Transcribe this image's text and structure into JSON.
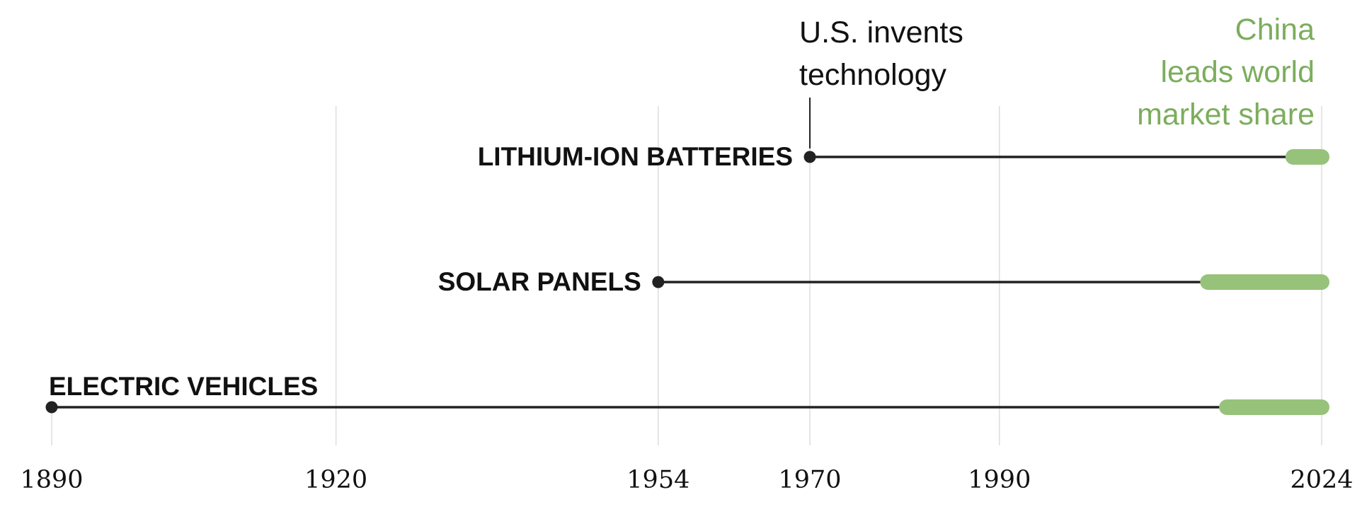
{
  "chart_data": {
    "type": "timeline",
    "x_ticks": [
      1890,
      1920,
      1954,
      1970,
      1990,
      2024
    ],
    "xlim": [
      1890,
      2024
    ],
    "series": [
      {
        "name": "LITHIUM-ION BATTERIES",
        "us_invents": 1970,
        "china_leads_start": 2021,
        "end": 2024
      },
      {
        "name": "SOLAR PANELS",
        "us_invents": 1954,
        "china_leads_start": 2012,
        "end": 2024
      },
      {
        "name": "ELECTRIC VEHICLES",
        "us_invents": 1890,
        "china_leads_start": 2014,
        "end": 2024
      }
    ],
    "annotations": {
      "us_invents": [
        "U.S. invents",
        "technology"
      ],
      "china_leads": [
        "China",
        "leads world",
        "market share"
      ]
    },
    "colors": {
      "line": "#222222",
      "china": "#97c27a",
      "china_text": "#7cad5c",
      "grid": "#dddddd"
    }
  }
}
